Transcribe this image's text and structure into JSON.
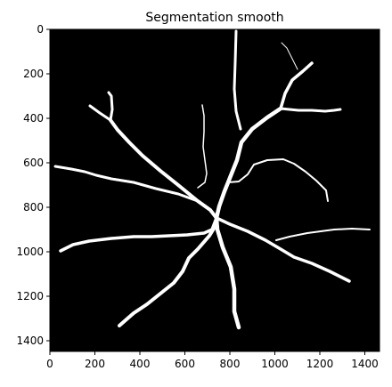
{
  "figure": {
    "title": "Segmentation smooth",
    "background_color": "#000000",
    "foreground_color": "#ffffff",
    "x_ticks": [
      "0",
      "200",
      "400",
      "600",
      "800",
      "1000",
      "1200",
      "1400"
    ],
    "y_ticks": [
      "0",
      "200",
      "400",
      "600",
      "800",
      "1000",
      "1200",
      "1400"
    ]
  }
}
